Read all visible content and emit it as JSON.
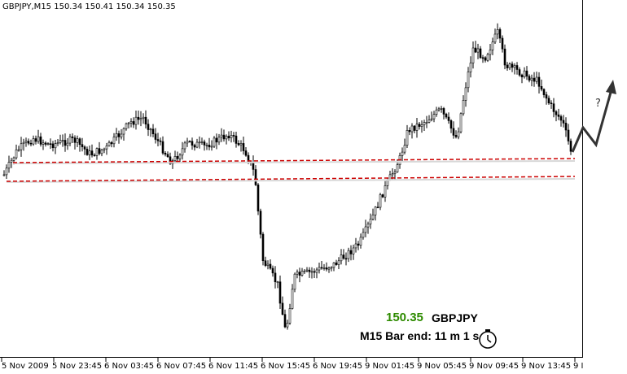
{
  "header": {
    "text": "GBPJPY,M15  150.34 150.41 150.34 150.35"
  },
  "time_axis": {
    "labels": [
      "5 Nov 2009",
      "5 Nov 23:45",
      "6 Nov 03:45",
      "6 Nov 07:45",
      "6 Nov 11:45",
      "6 Nov 15:45",
      "6 Nov 19:45",
      "9 Nov 01:45",
      "9 Nov 05:45",
      "9 Nov 09:45",
      "9 Nov 13:45",
      "9 I"
    ]
  },
  "info_panel": {
    "price": "150.35",
    "symbol": "GBPJPY",
    "bar_end": "M15 Bar end: 11 m 1 s"
  },
  "annotation": {
    "question_mark": "?"
  },
  "colors": {
    "background": "#ffffff",
    "candle": "#000000",
    "support_line": "#cc0000",
    "support_shadow": "#cccccc",
    "price_text": "#2e8b00",
    "arrow": "#333333"
  },
  "icons": [
    "clock-icon",
    "arrow-up-icon"
  ]
}
